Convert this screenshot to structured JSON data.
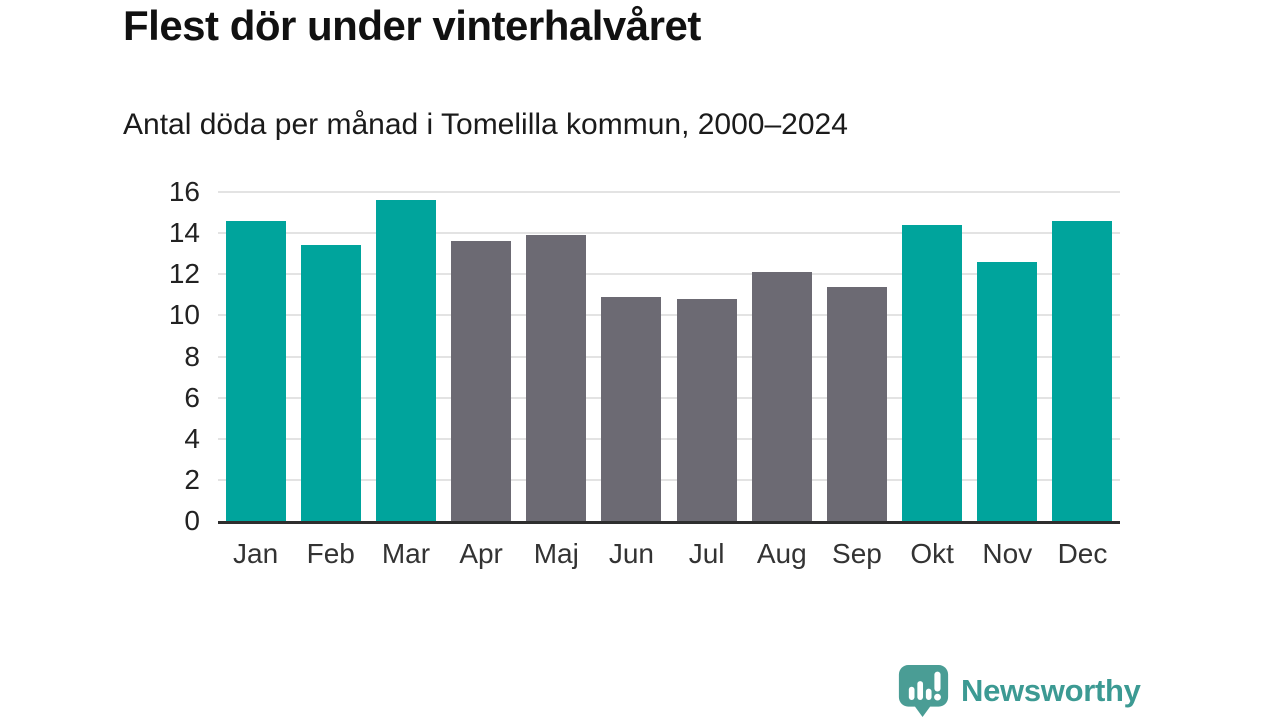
{
  "header": {
    "title": "Flest dör under vinterhalvåret",
    "subtitle": "Antal döda per månad i Tomelilla kommun, 2000–2024"
  },
  "colors": {
    "winter_bar": "#00A49C",
    "summer_bar": "#6C6A73",
    "gridline": "#e3e3e3",
    "axis_line": "#2e2e2e",
    "logo_teal": "#4A9D95",
    "brand_text_teal": "#3c9a93"
  },
  "chart_data": {
    "type": "bar",
    "title": "Flest dör under vinterhalvåret",
    "subtitle": "Antal döda per månad i Tomelilla kommun, 2000–2024",
    "categories": [
      "Jan",
      "Feb",
      "Mar",
      "Apr",
      "Maj",
      "Jun",
      "Jul",
      "Aug",
      "Sep",
      "Okt",
      "Nov",
      "Dec"
    ],
    "values": [
      14.6,
      13.4,
      15.6,
      13.6,
      13.9,
      10.9,
      10.8,
      12.1,
      11.4,
      14.4,
      12.6,
      14.6
    ],
    "bar_color_keys": [
      "winter_bar",
      "winter_bar",
      "winter_bar",
      "summer_bar",
      "summer_bar",
      "summer_bar",
      "summer_bar",
      "summer_bar",
      "summer_bar",
      "winter_bar",
      "winter_bar",
      "winter_bar"
    ],
    "xlabel": "",
    "ylabel": "",
    "ylim": [
      0,
      16
    ],
    "yticks": [
      0,
      2,
      4,
      6,
      8,
      10,
      12,
      14,
      16
    ],
    "grid": true,
    "legend_position": "none"
  },
  "footer": {
    "brand": "Newsworthy",
    "logo_icon": "newsworthy-speech-bubble-chart-icon"
  }
}
